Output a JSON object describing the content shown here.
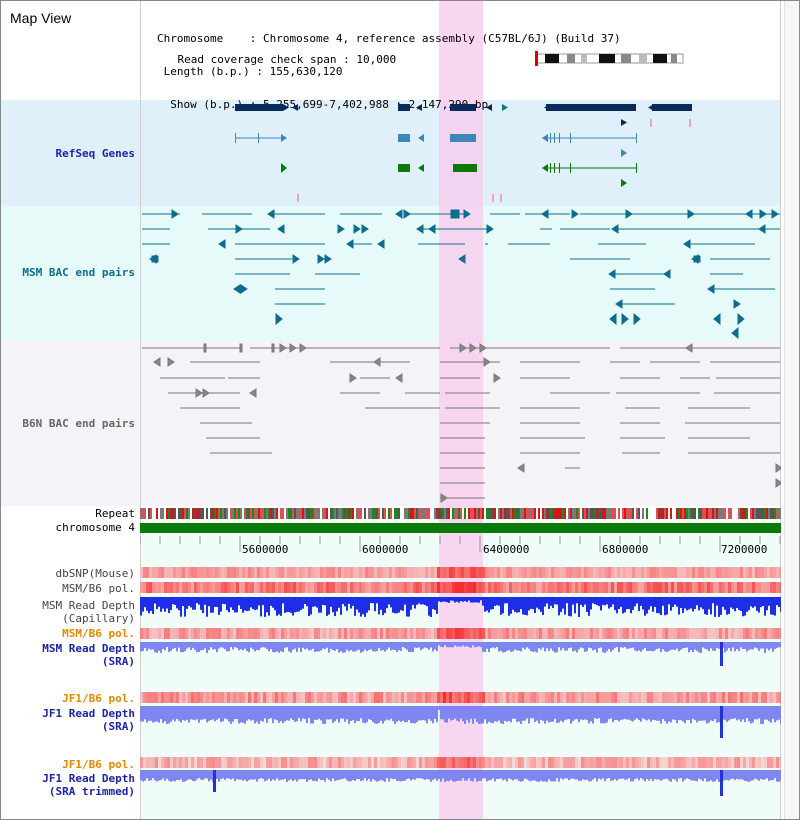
{
  "panel_title": "Map View",
  "header": {
    "chromosome_label": "Chromosome",
    "chromosome_value": "Chromosome 4, reference assembly (C57BL/6J) (Build 37)",
    "length_label": "Length (b.p.)",
    "length_value": "155,630,120",
    "show_label": "Show (b.p.)",
    "show_value": "5,255,699-7,402,988 : 2,147,290 bp",
    "coverage_label": "Read coverage check span",
    "coverage_value": "10,000"
  },
  "tracks": {
    "refseq": "RefSeq Genes",
    "msm_bac": "MSM BAC end pairs",
    "b6n_bac": "B6N BAC end pairs",
    "repeat": "Repeat",
    "chromosome": "chromosome 4",
    "dbsnp": "dbSNP(Mouse)",
    "msm_b6_pol": "MSM/B6 pol.",
    "msm_read_depth": "MSM Read Depth",
    "msm_read_depth_sub": "(Capillary)",
    "msm_b6_pol_2": "MSM/B6 pol.",
    "msm_read_depth_sra": "MSM Read Depth",
    "msm_read_depth_sra_sub": "(SRA)",
    "jf1_b6_pol": "JF1/B6 pol.",
    "jf1_read_depth": "JF1 Read Depth",
    "jf1_read_depth_sub": "(SRA)",
    "jf1_b6_pol_2": "JF1/B6 pol.",
    "jf1_read_depth_trim": "JF1 Read Depth",
    "jf1_read_depth_trim_sub": "(SRA trimmed)"
  },
  "axis": {
    "ticks": [
      "5600000",
      "6000000",
      "6400000",
      "6800000",
      "7200000"
    ]
  },
  "colors": {
    "gene_dark": "#0a2a5c",
    "gene_mid": "#3d86b8",
    "gene_green": "#0a7a0a",
    "msm_bac": "#0e6d8f",
    "b6n_bac": "#777777",
    "chromosome_bar": "#0a7a0a",
    "highlight": "#f7cfee",
    "refseq_bg": "#dff0fa",
    "msm_bg": "#e8fafa",
    "b6n_bg": "#f3f3f8",
    "depth_blue": "#1e2ee6",
    "depth_light": "#7f86f0"
  },
  "scroll_icon": "vertical-scrollbar"
}
